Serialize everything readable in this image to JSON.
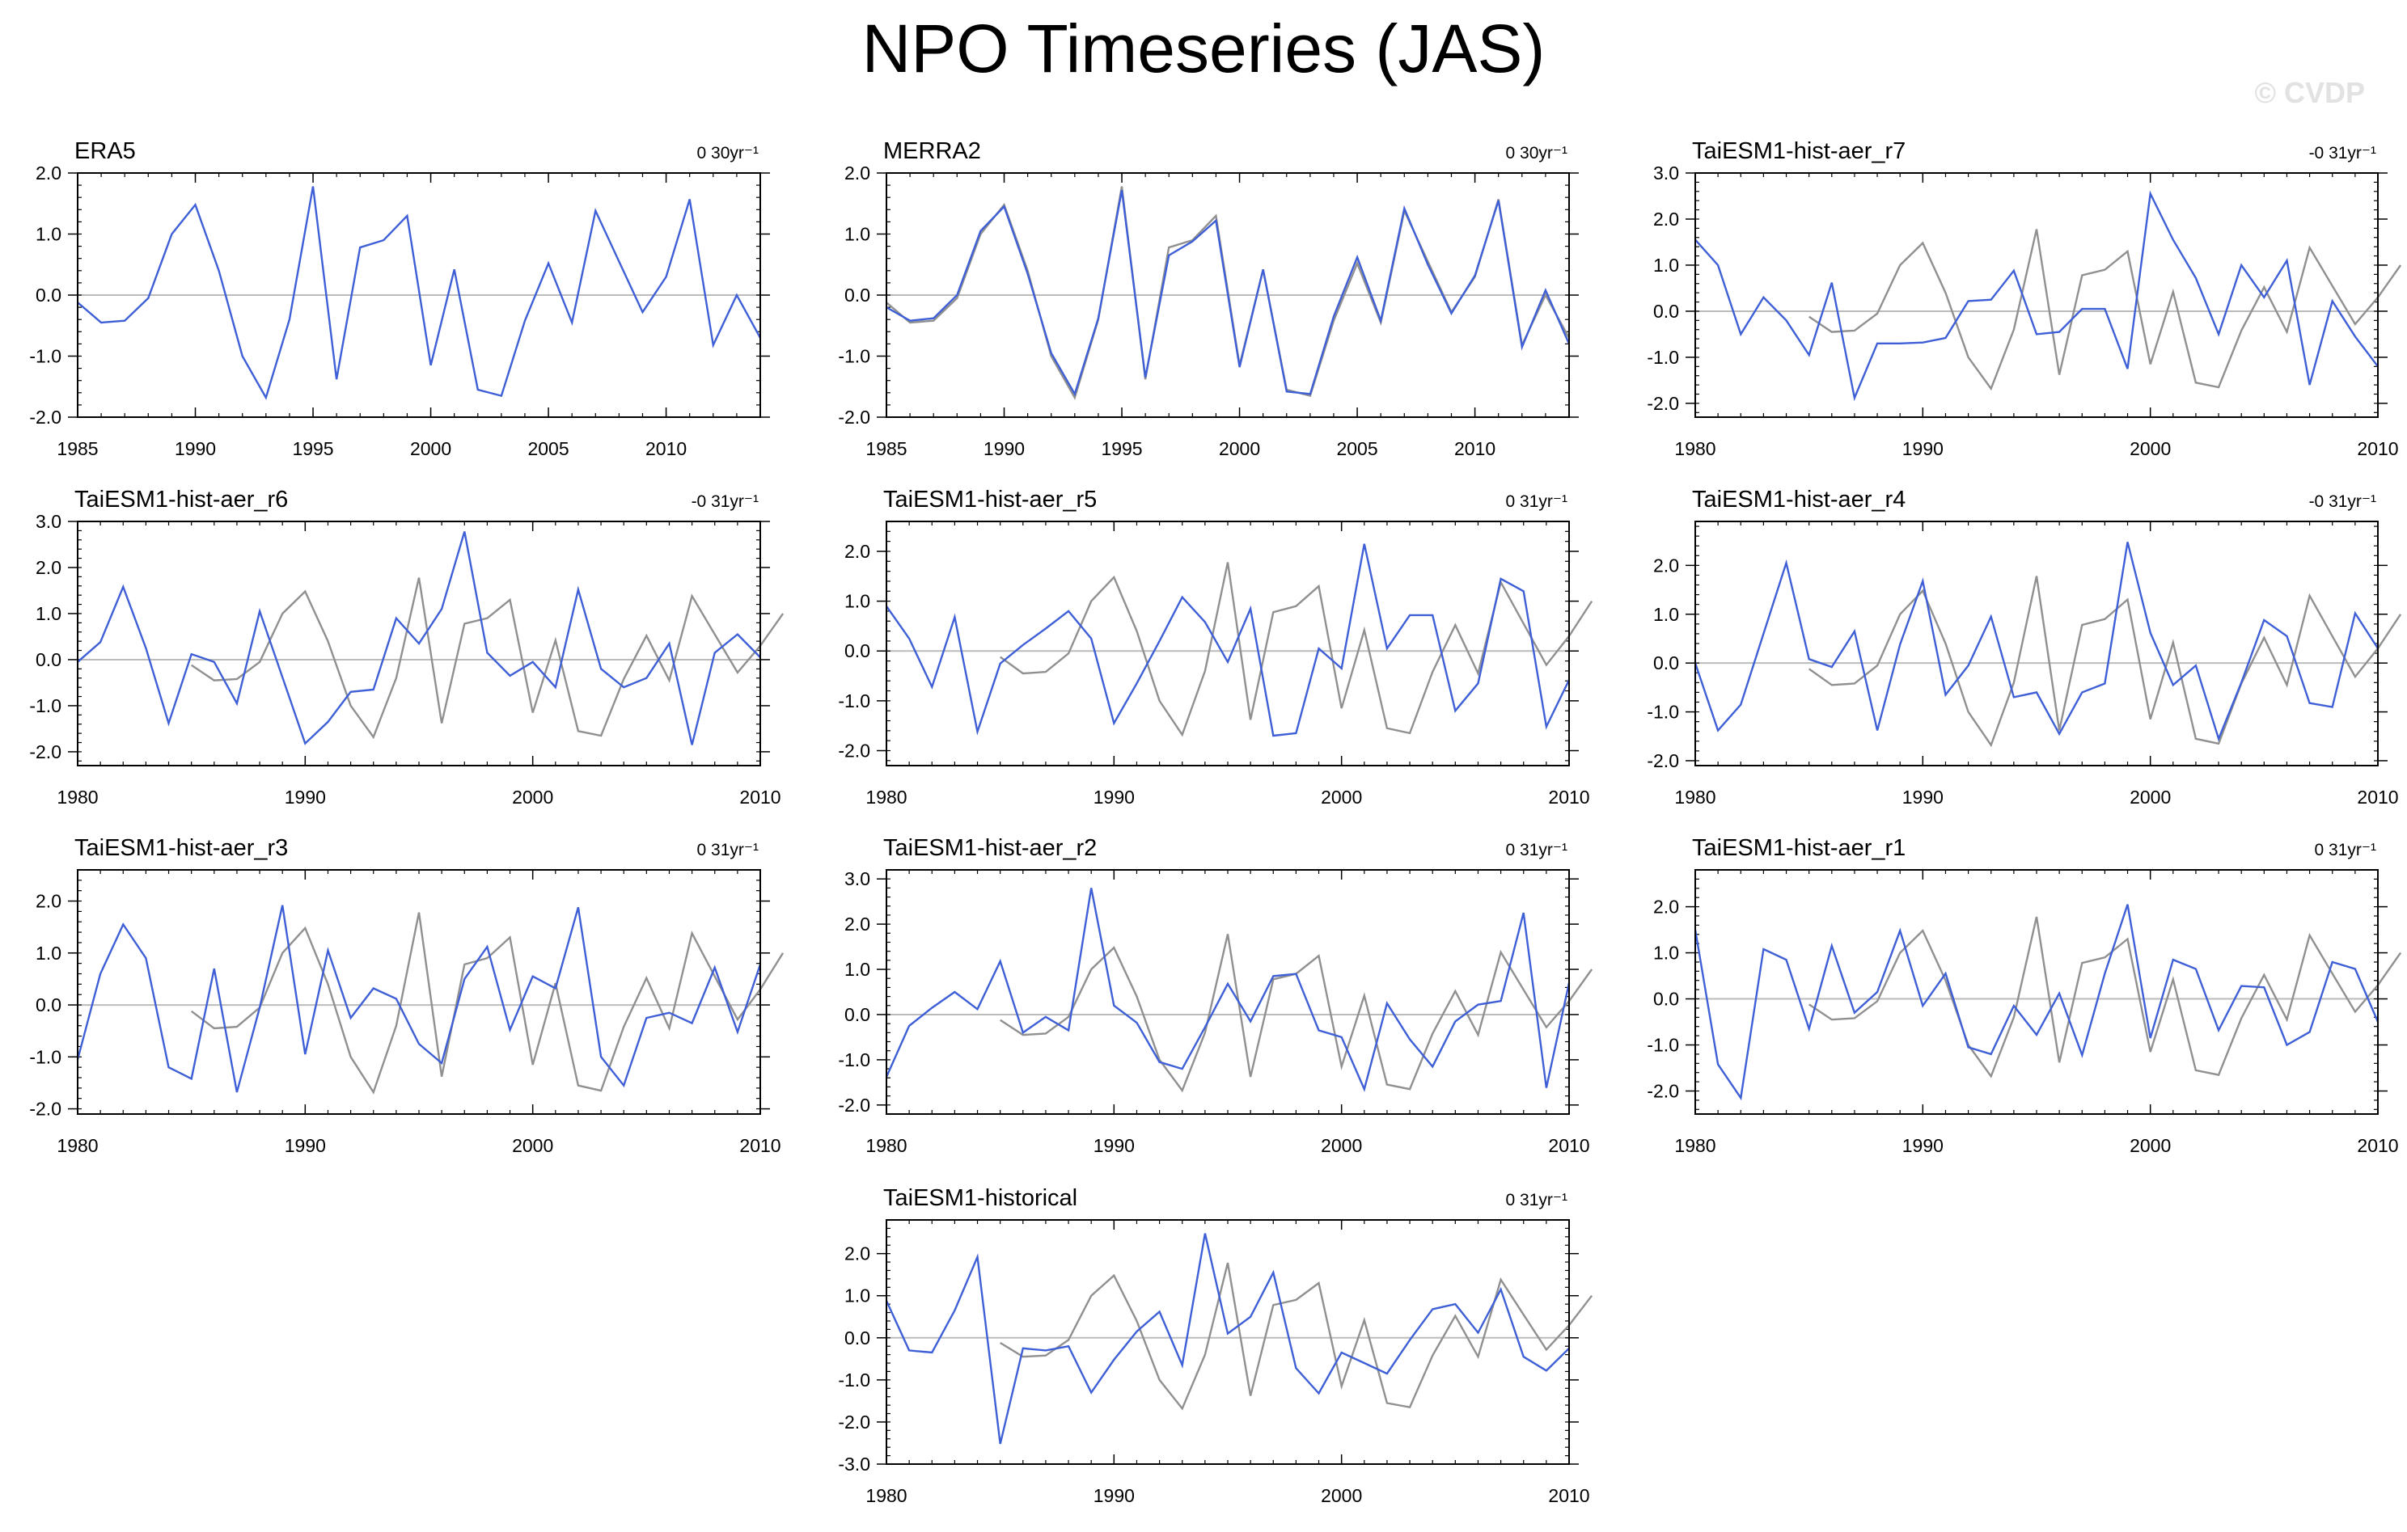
{
  "title": "NPO Timeseries (JAS)",
  "watermark": "© CVDP",
  "colors": {
    "model": "#3e5fd6",
    "observed": "#909090",
    "zero": "#bbbbbb",
    "axis": "#000000"
  },
  "chart_data": [
    {
      "type": "line",
      "title": "ERA5",
      "trend": "0 30yr⁻¹",
      "x_start": 1985,
      "xlim": [
        1985,
        2014
      ],
      "ylim": [
        -2,
        2
      ],
      "xticks": [
        1985,
        1990,
        1995,
        2000,
        2005,
        2010
      ],
      "yticks": [
        "-2.0",
        "-1.0",
        "0.0",
        "1.0",
        "2.0"
      ],
      "series": [
        {
          "role": "model",
          "values": [
            -0.12,
            -0.45,
            -0.42,
            -0.05,
            1.0,
            1.48,
            0.4,
            -1.0,
            -1.68,
            -0.4,
            1.78,
            -1.38,
            0.78,
            0.9,
            1.3,
            -1.15,
            0.42,
            -1.55,
            -1.65,
            -0.42,
            0.52,
            -0.45,
            1.38,
            0.55,
            -0.28,
            0.3,
            1.57,
            -0.82,
            0.0,
            -0.7
          ]
        }
      ]
    },
    {
      "type": "line",
      "title": "MERRA2",
      "trend": "0 30yr⁻¹",
      "x_start": 1985,
      "xlim": [
        1985,
        2014
      ],
      "ylim": [
        -2,
        2
      ],
      "xticks": [
        1985,
        1990,
        1995,
        2000,
        2005,
        2010
      ],
      "yticks": [
        "-2.0",
        "-1.0",
        "0.0",
        "1.0",
        "2.0"
      ],
      "series": [
        {
          "role": "observed",
          "values": [
            -0.12,
            -0.45,
            -0.42,
            -0.05,
            1.0,
            1.48,
            0.4,
            -1.0,
            -1.68,
            -0.4,
            1.78,
            -1.38,
            0.78,
            0.9,
            1.3,
            -1.15,
            0.42,
            -1.55,
            -1.65,
            -0.42,
            0.52,
            -0.45,
            1.38,
            0.55,
            -0.28,
            0.3,
            1.57,
            -0.82,
            0.0,
            -0.7
          ]
        },
        {
          "role": "model",
          "values": [
            -0.2,
            -0.42,
            -0.38,
            0.0,
            1.05,
            1.45,
            0.35,
            -0.95,
            -1.62,
            -0.38,
            1.72,
            -1.35,
            0.65,
            0.88,
            1.22,
            -1.18,
            0.42,
            -1.58,
            -1.62,
            -0.35,
            0.62,
            -0.42,
            1.42,
            0.5,
            -0.3,
            0.32,
            1.55,
            -0.85,
            0.08,
            -0.8
          ]
        }
      ]
    },
    {
      "type": "line",
      "title": "TaiESM1-hist-aer_r7",
      "trend": "-0 31yr⁻¹",
      "x_start": 1980,
      "xlim": [
        1980,
        2010
      ],
      "ylim": [
        -2.3,
        3.0
      ],
      "xticks": [
        1980,
        1990,
        2000,
        2010
      ],
      "yticks": [
        "-2.0",
        "-1.0",
        "0.0",
        "1.0",
        "2.0",
        "3.0"
      ],
      "series": [
        {
          "role": "observed",
          "x_start": 1985,
          "values": [
            -0.12,
            -0.45,
            -0.42,
            -0.05,
            1.0,
            1.48,
            0.4,
            -1.0,
            -1.68,
            -0.4,
            1.78,
            -1.38,
            0.78,
            0.9,
            1.3,
            -1.15,
            0.42,
            -1.55,
            -1.65,
            -0.42,
            0.52,
            -0.45,
            1.38,
            0.55,
            -0.28,
            0.3,
            1.0
          ]
        },
        {
          "role": "model",
          "values": [
            1.55,
            1.0,
            -0.5,
            0.3,
            -0.2,
            -0.95,
            0.62,
            -1.88,
            -0.7,
            -0.7,
            -0.68,
            -0.58,
            0.22,
            0.25,
            0.88,
            -0.5,
            -0.45,
            0.05,
            0.05,
            -1.25,
            2.55,
            1.55,
            0.72,
            -0.5,
            1.0,
            0.3,
            1.1,
            -1.6,
            0.22,
            -0.55,
            -1.2
          ]
        }
      ]
    },
    {
      "type": "line",
      "title": "TaiESM1-hist-aer_r6",
      "trend": "-0 31yr⁻¹",
      "x_start": 1980,
      "xlim": [
        1980,
        2010
      ],
      "ylim": [
        -2.3,
        3.0
      ],
      "xticks": [
        1980,
        1990,
        2000,
        2010
      ],
      "yticks": [
        "-2.0",
        "-1.0",
        "0.0",
        "1.0",
        "2.0",
        "3.0"
      ],
      "series": [
        {
          "role": "observed",
          "x_start": 1985,
          "values": [
            -0.12,
            -0.45,
            -0.42,
            -0.05,
            1.0,
            1.48,
            0.4,
            -1.0,
            -1.68,
            -0.4,
            1.78,
            -1.38,
            0.78,
            0.9,
            1.3,
            -1.15,
            0.42,
            -1.55,
            -1.65,
            -0.42,
            0.52,
            -0.45,
            1.38,
            0.55,
            -0.28,
            0.3,
            1.0
          ]
        },
        {
          "role": "model",
          "values": [
            -0.05,
            0.38,
            1.58,
            0.25,
            -1.38,
            0.12,
            -0.05,
            -0.95,
            1.05,
            -0.38,
            -1.82,
            -1.35,
            -0.7,
            -0.65,
            0.9,
            0.35,
            1.1,
            2.78,
            0.15,
            -0.35,
            -0.05,
            -0.6,
            1.52,
            -0.2,
            -0.6,
            -0.4,
            0.35,
            -1.85,
            0.15,
            0.55,
            0.05
          ]
        }
      ]
    },
    {
      "type": "line",
      "title": "TaiESM1-hist-aer_r5",
      "trend": "0 31yr⁻¹",
      "x_start": 1980,
      "xlim": [
        1980,
        2010
      ],
      "ylim": [
        -2.3,
        2.6
      ],
      "xticks": [
        1980,
        1990,
        2000,
        2010
      ],
      "yticks": [
        "-2.0",
        "-1.0",
        "0.0",
        "1.0",
        "2.0"
      ],
      "series": [
        {
          "role": "observed",
          "x_start": 1985,
          "values": [
            -0.12,
            -0.45,
            -0.42,
            -0.05,
            1.0,
            1.48,
            0.4,
            -1.0,
            -1.68,
            -0.4,
            1.78,
            -1.38,
            0.78,
            0.9,
            1.3,
            -1.15,
            0.42,
            -1.55,
            -1.65,
            -0.42,
            0.52,
            -0.45,
            1.38,
            0.55,
            -0.28,
            0.3,
            1.0
          ]
        },
        {
          "role": "model",
          "values": [
            0.9,
            0.25,
            -0.72,
            0.68,
            -1.62,
            -0.25,
            0.12,
            0.45,
            0.8,
            0.25,
            -1.45,
            -0.65,
            0.2,
            1.08,
            0.58,
            -0.22,
            0.85,
            -1.7,
            -1.65,
            0.05,
            -0.35,
            2.15,
            0.05,
            0.72,
            0.72,
            -1.2,
            -0.65,
            1.45,
            1.2,
            -1.52,
            -0.58
          ]
        }
      ]
    },
    {
      "type": "line",
      "title": "TaiESM1-hist-aer_r4",
      "trend": "-0 31yr⁻¹",
      "x_start": 1980,
      "xlim": [
        1980,
        2010
      ],
      "ylim": [
        -2.1,
        2.9
      ],
      "xticks": [
        1980,
        1990,
        2000,
        2010
      ],
      "yticks": [
        "-2.0",
        "-1.0",
        "0.0",
        "1.0",
        "2.0"
      ],
      "series": [
        {
          "role": "observed",
          "x_start": 1985,
          "values": [
            -0.12,
            -0.45,
            -0.42,
            -0.05,
            1.0,
            1.48,
            0.4,
            -1.0,
            -1.68,
            -0.4,
            1.78,
            -1.38,
            0.78,
            0.9,
            1.3,
            -1.15,
            0.42,
            -1.55,
            -1.65,
            -0.42,
            0.52,
            -0.45,
            1.38,
            0.55,
            -0.28,
            0.3,
            1.0
          ]
        },
        {
          "role": "model",
          "values": [
            0.0,
            -1.38,
            -0.85,
            0.6,
            2.05,
            0.08,
            -0.08,
            0.65,
            -1.38,
            0.38,
            1.68,
            -0.65,
            -0.05,
            0.95,
            -0.7,
            -0.6,
            -1.45,
            -0.6,
            -0.42,
            2.48,
            0.62,
            -0.45,
            -0.05,
            -1.55,
            -0.4,
            0.88,
            0.55,
            -0.82,
            -0.9,
            1.02,
            0.3
          ]
        }
      ]
    },
    {
      "type": "line",
      "title": "TaiESM1-hist-aer_r3",
      "trend": "0 31yr⁻¹",
      "x_start": 1980,
      "xlim": [
        1980,
        2010
      ],
      "ylim": [
        -2.1,
        2.6
      ],
      "xticks": [
        1980,
        1990,
        2000,
        2010
      ],
      "yticks": [
        "-2.0",
        "-1.0",
        "0.0",
        "1.0",
        "2.0"
      ],
      "series": [
        {
          "role": "observed",
          "x_start": 1985,
          "values": [
            -0.12,
            -0.45,
            -0.42,
            -0.05,
            1.0,
            1.48,
            0.4,
            -1.0,
            -1.68,
            -0.4,
            1.78,
            -1.38,
            0.78,
            0.9,
            1.3,
            -1.15,
            0.42,
            -1.55,
            -1.65,
            -0.42,
            0.52,
            -0.45,
            1.38,
            0.55,
            -0.28,
            0.3,
            1.0
          ]
        },
        {
          "role": "model",
          "values": [
            -1.05,
            0.6,
            1.55,
            0.9,
            -1.2,
            -1.42,
            0.7,
            -1.68,
            -0.05,
            1.92,
            -0.95,
            1.05,
            -0.25,
            0.32,
            0.12,
            -0.75,
            -1.12,
            0.5,
            1.12,
            -0.48,
            0.55,
            0.32,
            1.88,
            -1.0,
            -1.55,
            -0.25,
            -0.15,
            -0.35,
            0.72,
            -0.52,
            0.78
          ]
        }
      ]
    },
    {
      "type": "line",
      "title": "TaiESM1-hist-aer_r2",
      "trend": "0 31yr⁻¹",
      "x_start": 1980,
      "xlim": [
        1980,
        2010
      ],
      "ylim": [
        -2.2,
        3.2
      ],
      "xticks": [
        1980,
        1990,
        2000,
        2010
      ],
      "yticks": [
        "-2.0",
        "-1.0",
        "0.0",
        "1.0",
        "2.0",
        "3.0"
      ],
      "series": [
        {
          "role": "observed",
          "x_start": 1985,
          "values": [
            -0.12,
            -0.45,
            -0.42,
            -0.05,
            1.0,
            1.48,
            0.4,
            -1.0,
            -1.68,
            -0.4,
            1.78,
            -1.38,
            0.78,
            0.9,
            1.3,
            -1.15,
            0.42,
            -1.55,
            -1.65,
            -0.42,
            0.52,
            -0.45,
            1.38,
            0.55,
            -0.28,
            0.3,
            1.0
          ]
        },
        {
          "role": "model",
          "values": [
            -1.38,
            -0.25,
            0.15,
            0.5,
            0.12,
            1.18,
            -0.4,
            -0.05,
            -0.35,
            2.8,
            0.2,
            -0.18,
            -1.05,
            -1.2,
            -0.28,
            0.68,
            -0.15,
            0.85,
            0.9,
            -0.35,
            -0.5,
            -1.65,
            0.25,
            -0.55,
            -1.15,
            -0.15,
            0.22,
            0.3,
            2.25,
            -1.62,
            0.7
          ]
        }
      ]
    },
    {
      "type": "line",
      "title": "TaiESM1-hist-aer_r1",
      "trend": "0 31yr⁻¹",
      "x_start": 1980,
      "xlim": [
        1980,
        2010
      ],
      "ylim": [
        -2.5,
        2.8
      ],
      "xticks": [
        1980,
        1990,
        2000,
        2010
      ],
      "yticks": [
        "-2.0",
        "-1.0",
        "0.0",
        "1.0",
        "2.0"
      ],
      "series": [
        {
          "role": "observed",
          "x_start": 1985,
          "values": [
            -0.12,
            -0.45,
            -0.42,
            -0.05,
            1.0,
            1.48,
            0.4,
            -1.0,
            -1.68,
            -0.4,
            1.78,
            -1.38,
            0.78,
            0.9,
            1.3,
            -1.15,
            0.42,
            -1.55,
            -1.65,
            -0.42,
            0.52,
            -0.45,
            1.38,
            0.55,
            -0.28,
            0.3,
            1.0
          ]
        },
        {
          "role": "model",
          "values": [
            1.5,
            -1.42,
            -2.15,
            1.08,
            0.85,
            -0.65,
            1.15,
            -0.3,
            0.15,
            1.48,
            -0.15,
            0.55,
            -1.05,
            -1.2,
            -0.15,
            -0.78,
            0.12,
            -1.22,
            0.55,
            2.05,
            -0.85,
            0.85,
            0.65,
            -0.68,
            0.28,
            0.25,
            -1.0,
            -0.72,
            0.8,
            0.65,
            -0.5
          ]
        }
      ]
    },
    {
      "type": "line",
      "title": "TaiESM1-historical",
      "trend": "0 31yr⁻¹",
      "x_start": 1980,
      "xlim": [
        1980,
        2010
      ],
      "ylim": [
        -3.0,
        2.8
      ],
      "xticks": [
        1980,
        1990,
        2000,
        2010
      ],
      "yticks": [
        "-3.0",
        "-2.0",
        "-1.0",
        "0.0",
        "1.0",
        "2.0"
      ],
      "series": [
        {
          "role": "observed",
          "x_start": 1985,
          "values": [
            -0.12,
            -0.45,
            -0.42,
            -0.05,
            1.0,
            1.48,
            0.4,
            -1.0,
            -1.68,
            -0.4,
            1.78,
            -1.38,
            0.78,
            0.9,
            1.3,
            -1.15,
            0.42,
            -1.55,
            -1.65,
            -0.42,
            0.52,
            -0.45,
            1.38,
            0.55,
            -0.28,
            0.3,
            1.0
          ]
        },
        {
          "role": "model",
          "values": [
            0.88,
            -0.3,
            -0.35,
            0.65,
            1.92,
            -2.52,
            -0.25,
            -0.3,
            -0.2,
            -1.3,
            -0.52,
            0.15,
            0.62,
            -0.65,
            2.48,
            0.1,
            0.5,
            1.55,
            -0.72,
            -1.32,
            -0.35,
            -0.6,
            -0.85,
            -0.05,
            0.68,
            0.8,
            0.12,
            1.15,
            -0.45,
            -0.78,
            -0.25
          ]
        }
      ]
    }
  ]
}
